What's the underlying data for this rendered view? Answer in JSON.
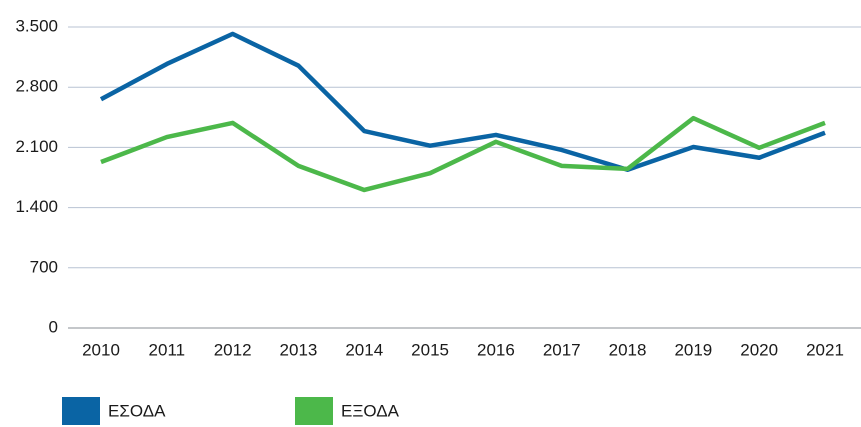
{
  "chart_data": {
    "type": "line",
    "categories": [
      "2010",
      "2011",
      "2012",
      "2013",
      "2014",
      "2015",
      "2016",
      "2017",
      "2018",
      "2019",
      "2020",
      "2021"
    ],
    "series": [
      {
        "name": "ΕΣΟΔΑ",
        "color": "#0a64a4",
        "values": [
          2660,
          3070,
          3420,
          3050,
          2290,
          2120,
          2245,
          2070,
          1840,
          2105,
          1980,
          2270
        ]
      },
      {
        "name": "ΕΞΟΔΑ",
        "color": "#4cb84a",
        "values": [
          1930,
          2220,
          2385,
          1885,
          1605,
          1800,
          2165,
          1885,
          1850,
          2440,
          2095,
          2385
        ]
      }
    ],
    "ylim": [
      0,
      3500
    ],
    "yticks": [
      0,
      700,
      {
        "value": 1400,
        "label": "1.400"
      },
      {
        "value": 2100,
        "label": "2.100"
      },
      {
        "value": 2800,
        "label": "2.800"
      },
      {
        "value": 3500,
        "label": "3.500"
      }
    ],
    "grid": true,
    "legend": "bottom"
  }
}
